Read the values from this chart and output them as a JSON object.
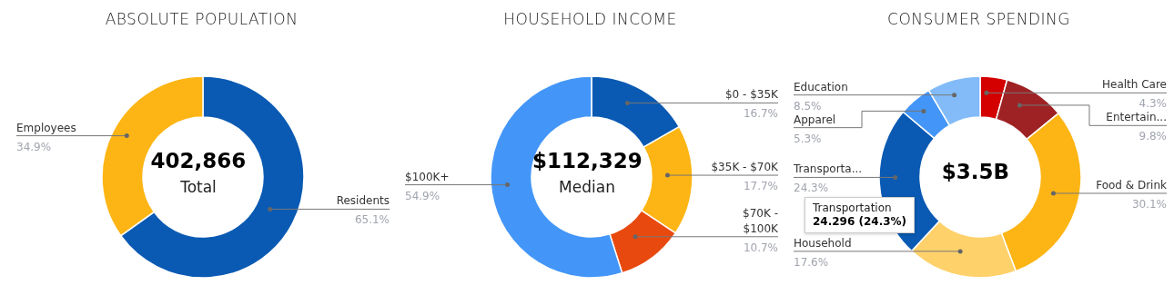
{
  "chart_data": [
    {
      "type": "donut",
      "title": "ABSOLUTE POPULATION",
      "categories": [
        "Residents",
        "Employees"
      ],
      "values": [
        65.1,
        34.9
      ],
      "colors": [
        "#0a5ab3",
        "#fdb515"
      ],
      "value_labels": [
        "65.1%",
        "34.9%"
      ],
      "annotations": [
        "402,866",
        "Total"
      ]
    },
    {
      "type": "donut",
      "title": "HOUSEHOLD INCOME",
      "categories": [
        "$0 - $35K",
        "$35K - $70K",
        "$70K - $100K",
        "$100K+"
      ],
      "values": [
        16.7,
        17.7,
        10.7,
        54.9
      ],
      "colors": [
        "#0a5ab3",
        "#fdb515",
        "#e8490f",
        "#4396f7"
      ],
      "value_labels": [
        "16.7%",
        "17.7%",
        "10.7%",
        "54.9%"
      ],
      "annotations": [
        "$112,329",
        "Median"
      ]
    },
    {
      "type": "donut",
      "title": "CONSUMER SPENDING",
      "categories": [
        "Health Care",
        "Entertain...",
        "Food & Drink",
        "Household",
        "Transporta...",
        "Apparel",
        "Education"
      ],
      "values": [
        4.3,
        9.8,
        30.1,
        17.6,
        24.3,
        5.3,
        8.5
      ],
      "colors": [
        "#d40000",
        "#9e2224",
        "#fdb515",
        "#fed16a",
        "#0a5ab3",
        "#4396f7",
        "#82bbf8"
      ],
      "value_labels": [
        "4.3%",
        "9.8%",
        "30.1%",
        "17.6%",
        "24.3%",
        "5.3%",
        "8.5%"
      ],
      "annotations": [
        "$3.5B",
        "Transportation",
        "24.296 (24.3%)"
      ]
    }
  ]
}
